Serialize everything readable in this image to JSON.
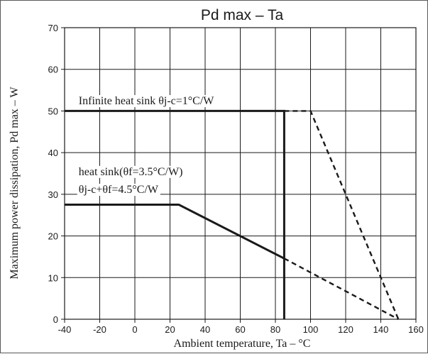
{
  "chart_data": {
    "type": "line",
    "title": "Pd max – Ta",
    "xlabel": "Ambient temperature, Ta  – °C",
    "ylabel": "Maximum power dissipation, Pd max – W",
    "xlim": [
      -40,
      160
    ],
    "ylim": [
      0,
      70
    ],
    "xticks": [
      -40,
      -20,
      0,
      20,
      40,
      60,
      80,
      100,
      120,
      140,
      160
    ],
    "yticks": [
      0,
      10,
      20,
      30,
      40,
      50,
      60,
      70
    ],
    "grid": true,
    "extra_vlines": [
      80,
      140
    ],
    "colors": {
      "line": "#1a1a1a",
      "grid": "#1a1a1a"
    },
    "series": [
      {
        "style": "solid",
        "x": [
          -40,
          85,
          85
        ],
        "y": [
          50,
          50,
          0
        ]
      },
      {
        "style": "dashed",
        "x": [
          85,
          100,
          150
        ],
        "y": [
          50,
          50,
          0
        ]
      },
      {
        "style": "solid",
        "x": [
          -40,
          25,
          85
        ],
        "y": [
          27.5,
          27.5,
          14.6
        ]
      },
      {
        "style": "dashed",
        "x": [
          85,
          150
        ],
        "y": [
          14.6,
          0
        ]
      }
    ],
    "annotations": [
      {
        "text": "Infinite heat sink  θj-c=1°C/W",
        "x": -32,
        "y": 51.6
      },
      {
        "text": "heat sink(θf=3.5°C/W)",
        "x": -32,
        "y": 34.6
      },
      {
        "text": "θj-c+θf=4.5°C/W",
        "x": -32,
        "y": 30.3
      }
    ]
  }
}
